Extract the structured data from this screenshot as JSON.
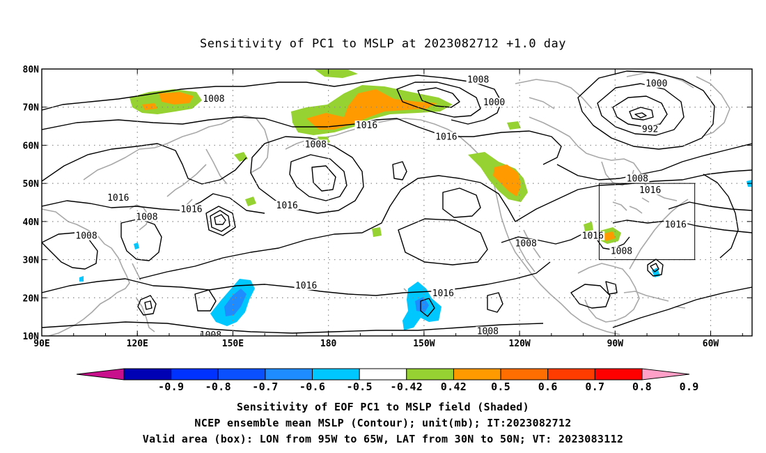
{
  "title": "Sensitivity of PC1 to MSLP at 2023082712 +1.0 day",
  "map": {
    "lat_ticks": [
      {
        "v": 80,
        "label": "80N"
      },
      {
        "v": 70,
        "label": "70N"
      },
      {
        "v": 60,
        "label": "60N"
      },
      {
        "v": 50,
        "label": "50N"
      },
      {
        "v": 40,
        "label": "40N"
      },
      {
        "v": 30,
        "label": "30N"
      },
      {
        "v": 20,
        "label": "20N"
      },
      {
        "v": 10,
        "label": "10N"
      }
    ],
    "lon_ticks": [
      {
        "v": 90,
        "label": "90E"
      },
      {
        "v": 120,
        "label": "120E"
      },
      {
        "v": 150,
        "label": "150E"
      },
      {
        "v": 180,
        "label": "180"
      },
      {
        "v": 210,
        "label": "150W"
      },
      {
        "v": 240,
        "label": "120W"
      },
      {
        "v": 270,
        "label": "90W"
      },
      {
        "v": 300,
        "label": "60W"
      }
    ],
    "lon_range": [
      90,
      313
    ],
    "lat_range": [
      10,
      80
    ],
    "grid": true,
    "valid_box": {
      "lon_min": 265,
      "lon_max": 295,
      "lat_min": 30,
      "lat_max": 50
    },
    "contour_labels": [
      {
        "text": "1008",
        "lon": 144,
        "lat": 72
      },
      {
        "text": "1008",
        "lon": 227,
        "lat": 77
      },
      {
        "text": "1000",
        "lon": 232,
        "lat": 71
      },
      {
        "text": "1016",
        "lon": 192,
        "lat": 65
      },
      {
        "text": "1016",
        "lon": 217,
        "lat": 62
      },
      {
        "text": "1008",
        "lon": 176,
        "lat": 60
      },
      {
        "text": "1000",
        "lon": 283,
        "lat": 76
      },
      {
        "text": "992",
        "lon": 281,
        "lat": 64
      },
      {
        "text": "1008",
        "lon": 277,
        "lat": 51
      },
      {
        "text": "1016",
        "lon": 281,
        "lat": 48
      },
      {
        "text": "1016",
        "lon": 114,
        "lat": 46
      },
      {
        "text": "1016",
        "lon": 137,
        "lat": 43
      },
      {
        "text": "1016",
        "lon": 167,
        "lat": 44
      },
      {
        "text": "1008",
        "lon": 123,
        "lat": 41
      },
      {
        "text": "1008",
        "lon": 104,
        "lat": 36
      },
      {
        "text": "1016",
        "lon": 263,
        "lat": 36
      },
      {
        "text": "1008",
        "lon": 242,
        "lat": 34
      },
      {
        "text": "1008",
        "lon": 272,
        "lat": 32
      },
      {
        "text": "1016",
        "lon": 289,
        "lat": 39
      },
      {
        "text": "1016",
        "lon": 173,
        "lat": 23
      },
      {
        "text": "1016",
        "lon": 216,
        "lat": 21
      },
      {
        "text": "1008",
        "lon": 143,
        "lat": 10
      },
      {
        "text": "1008",
        "lon": 230,
        "lat": 11
      }
    ]
  },
  "colorbar": {
    "labels": [
      "-0.9",
      "-0.8",
      "-0.7",
      "-0.6",
      "-0.5",
      "-0.42",
      "0.42",
      "0.5",
      "0.6",
      "0.7",
      "0.8",
      "0.9"
    ],
    "colors": [
      "#0000b4",
      "#0032ff",
      "#0a50ff",
      "#1e8cff",
      "#00c8ff",
      "#ffffff",
      "#96d232",
      "#ff9b00",
      "#ff6e00",
      "#ff3c00",
      "#ff0000"
    ],
    "low_end_color": "#c8108c",
    "high_end_color": "#ffa0c8"
  },
  "captions": {
    "line1": "Sensitivity of EOF PC1 to MSLP field (Shaded)",
    "line2": "NCEP ensemble mean MSLP (Contour); unit(mb); IT:2023082712",
    "line3": "Valid area (box): LON from 95W to 65W, LAT from 30N to 50N; VT: 2023083112"
  }
}
